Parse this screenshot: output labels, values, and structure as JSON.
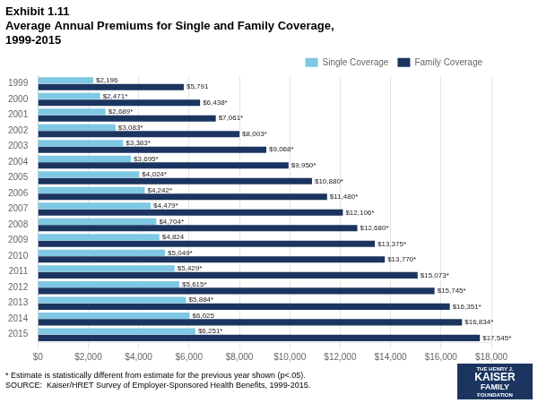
{
  "chart_data": {
    "type": "bar",
    "orientation": "horizontal",
    "title": [
      "Exhibit 1.11",
      "Average Annual Premiums for Single and Family Coverage,",
      "1999-2015"
    ],
    "categories": [
      "1999",
      "2000",
      "2001",
      "2002",
      "2003",
      "2004",
      "2005",
      "2006",
      "2007",
      "2008",
      "2009",
      "2010",
      "2011",
      "2012",
      "2013",
      "2014",
      "2015"
    ],
    "series": [
      {
        "name": "Single Coverage",
        "color": "#7EC8E3",
        "values": [
          2196,
          2471,
          2689,
          3083,
          3383,
          3695,
          4024,
          4242,
          4479,
          4704,
          4824,
          5049,
          5429,
          5615,
          5884,
          6025,
          6251
        ],
        "value_labels": [
          "$2,196",
          "$2,471*",
          "$2,689*",
          "$3,083*",
          "$3,383*",
          "$3,695*",
          "$4,024*",
          "$4,242*",
          "$4,479*",
          "$4,704*",
          "$4,824",
          "$5,049*",
          "$5,429*",
          "$5,615*",
          "$5,884*",
          "$6,025",
          "$6,251*"
        ]
      },
      {
        "name": "Family Coverage",
        "color": "#1B3560",
        "values": [
          5791,
          6438,
          7061,
          8003,
          9068,
          9950,
          10880,
          11480,
          12106,
          12680,
          13375,
          13770,
          15073,
          15745,
          16351,
          16834,
          17545
        ],
        "value_labels": [
          "$5,791",
          "$6,438*",
          "$7,061*",
          "$8,003*",
          "$9,068*",
          "$9,950*",
          "$10,880*",
          "$11,480*",
          "$12,106*",
          "$12,680*",
          "$13,375*",
          "$13,770*",
          "$15,073*",
          "$15,745*",
          "$16,351*",
          "$16,834*",
          "$17,545*"
        ]
      }
    ],
    "xlim": [
      0,
      18000
    ],
    "xticks": [
      {
        "value": 0,
        "label": "$0"
      },
      {
        "value": 2000,
        "label": "$2,000"
      },
      {
        "value": 4000,
        "label": "$4,000"
      },
      {
        "value": 6000,
        "label": "$6,000"
      },
      {
        "value": 8000,
        "label": "$8,000"
      },
      {
        "value": 10000,
        "label": "$10,000"
      },
      {
        "value": 12000,
        "label": "$12,000"
      },
      {
        "value": 14000,
        "label": "$14,000"
      },
      {
        "value": 16000,
        "label": "$16,000"
      },
      {
        "value": 18000,
        "label": "$18,000"
      }
    ],
    "grid": true,
    "legend": "top",
    "data_labels": true,
    "footnotes": [
      "* Estimate is statistically different from estimate for the previous year shown (p<.05).",
      "SOURCE:  Kaiser/HRET Survey of Employer-Sponsored Health Benefits, 1999-2015."
    ],
    "logo": {
      "lines": [
        "THE HENRY J.",
        "KAISER",
        "FAMILY",
        "FOUNDATION"
      ],
      "color": "#1B3560"
    }
  }
}
